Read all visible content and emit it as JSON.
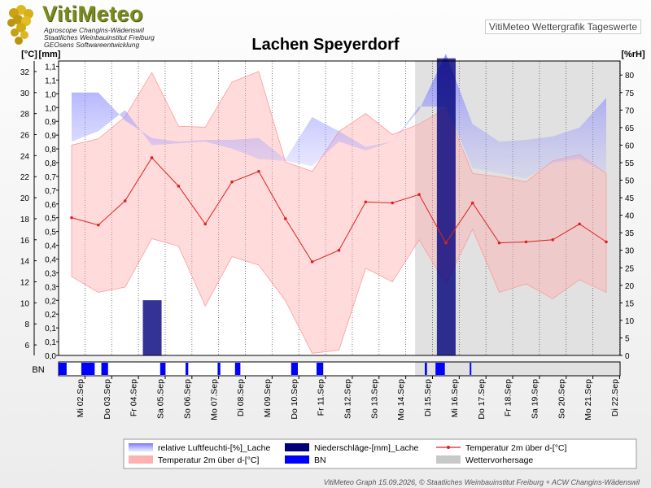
{
  "header": {
    "brand": "VitiMeteo",
    "sub1": "Agroscope Changins-Wädenswil",
    "sub2": "Staatliches Weinbauinstitut Freiburg",
    "sub3": "GEOsens Softwareentwicklung",
    "product": "VitiMeteo Wettergrafik Tageswerte"
  },
  "footer": "VitiMeteo Graph 15.09.2026, © Staatliches Weinbauinstitut Freiburg + ACW Changins-Wädenswil",
  "colors": {
    "humidity": "#7070ff",
    "temp_band": "#ffb0b0",
    "temp_line": "#e02020",
    "precip": "#00007a",
    "bn": "#0000ff",
    "forecast": "#c8c8c8"
  },
  "chart_data": {
    "type": "line",
    "title": "Lachen Speyerdorf",
    "y1_unit": "[°C]",
    "y2_unit": "[mm]",
    "y3_unit": "[%rH]",
    "ylim_temp": [
      5,
      33
    ],
    "ylim_mm": [
      0,
      1.12
    ],
    "ylim_rh": [
      0,
      84
    ],
    "yticks_temp": [
      "6",
      "8",
      "10",
      "12",
      "14",
      "16",
      "18",
      "20",
      "22",
      "24",
      "26",
      "28",
      "30",
      "32"
    ],
    "yticks_mm": [
      "0,0",
      "0,1",
      "0,1",
      "0,2",
      "0,2",
      "0,3",
      "0,3",
      "0,4",
      "0,4",
      "0,5",
      "0,5",
      "0,6",
      "0,7",
      "0,7",
      "0,8",
      "0,8",
      "0,9",
      "0,9",
      "1,0",
      "1,0",
      "1,1",
      "1,1"
    ],
    "yticks_rh": [
      "0",
      "5",
      "10",
      "15",
      "20",
      "25",
      "30",
      "35",
      "40",
      "45",
      "50",
      "55",
      "60",
      "65",
      "70",
      "75",
      "80"
    ],
    "categories": [
      "Mi 02.Sep",
      "Do 03.Sep",
      "Fr 04.Sep",
      "Sa 05.Sep",
      "So 06.Sep",
      "Mo 07.Sep",
      "Di 08.Sep",
      "Mi 09.Sep",
      "Do 10.Sep",
      "Fr 11.Sep",
      "Sa 12.Sep",
      "So 13.Sep",
      "Mo 14.Sep",
      "Di 15.Sep",
      "Mi 16.Sep",
      "Do 17.Sep",
      "Fr 18.Sep",
      "Sa 19.Sep",
      "So 20.Sep",
      "Mo 21.Sep",
      "Di 22.Sep"
    ],
    "forecast_from": "Di 15.Sep",
    "series": [
      {
        "name": "Temperatur 2m über d-[°C]",
        "role": "temp_mean",
        "values": [
          18.1,
          17.4,
          19.7,
          23.8,
          21.1,
          17.5,
          21.5,
          22.5,
          18.0,
          13.9,
          15.0,
          19.6,
          19.5,
          20.3,
          15.7,
          19.5,
          15.7,
          15.8,
          16.0,
          17.5,
          15.8
        ]
      },
      {
        "name": "Temperatur 2m über d-[°C]",
        "role": "temp_max",
        "values": [
          25.0,
          25.6,
          27.7,
          31.9,
          26.8,
          26.7,
          31.0,
          32.0,
          23.4,
          22.5,
          26.3,
          28.0,
          26.0,
          27.0,
          28.5,
          22.3,
          22.0,
          21.5,
          23.5,
          24.1,
          22.3
        ]
      },
      {
        "name": "Temperatur 2m über d-[°C]",
        "role": "temp_min",
        "values": [
          12.5,
          11.0,
          11.5,
          16.1,
          15.4,
          9.7,
          14.4,
          13.6,
          10.2,
          5.2,
          5.5,
          13.3,
          12.0,
          16.0,
          11.8,
          17.0,
          11.0,
          11.8,
          10.4,
          12.2,
          11.0
        ]
      },
      {
        "name": "relative Luftfeuchti-[%]_Lache",
        "role": "rh_max",
        "values": [
          75,
          75,
          67,
          62,
          61,
          61.5,
          61.5,
          62,
          56,
          68,
          64,
          59.5,
          61,
          70,
          86,
          66,
          61,
          61.5,
          62.5,
          65,
          73.5
        ]
      },
      {
        "name": "relative Luftfeuchti-[%]_Lache",
        "role": "rh_min",
        "values": [
          61,
          64,
          70,
          60,
          60.5,
          61,
          59,
          56,
          55.5,
          54,
          61,
          58.5,
          61,
          71,
          71,
          53.5,
          52,
          50.5,
          55,
          56,
          52
        ]
      },
      {
        "name": "Niederschläge-[mm]_Lache",
        "role": "precip",
        "unit": "mm",
        "values": [
          0,
          0,
          0,
          0.21,
          0,
          0,
          0,
          0,
          0,
          0,
          0,
          0,
          0,
          0,
          1.13,
          0,
          0,
          0,
          0,
          0,
          0
        ]
      }
    ],
    "bn_intervals": [
      [
        0.0,
        0.3
      ],
      [
        0.85,
        1.35
      ],
      [
        1.6,
        1.85
      ],
      [
        3.8,
        4.0
      ],
      [
        4.75,
        4.85
      ],
      [
        5.95,
        6.05
      ],
      [
        6.6,
        6.8
      ],
      [
        8.7,
        8.95
      ],
      [
        9.65,
        9.9
      ],
      [
        13.7,
        13.78
      ],
      [
        14.1,
        14.45
      ],
      [
        15.38,
        15.44
      ]
    ],
    "legend": [
      {
        "label": "relative Luftfeuchti-[%]_Lache",
        "key": "humidity"
      },
      {
        "label": "Niederschläge-[mm]_Lache",
        "key": "precip"
      },
      {
        "label": "Temperatur 2m über d-[°C]",
        "key": "temp_line"
      },
      {
        "label": "Temperatur 2m über d-[°C]",
        "key": "temp_band"
      },
      {
        "label": "BN",
        "key": "bn"
      },
      {
        "label": "Wettervorhersage",
        "key": "forecast"
      }
    ],
    "bn_label": "BN"
  }
}
